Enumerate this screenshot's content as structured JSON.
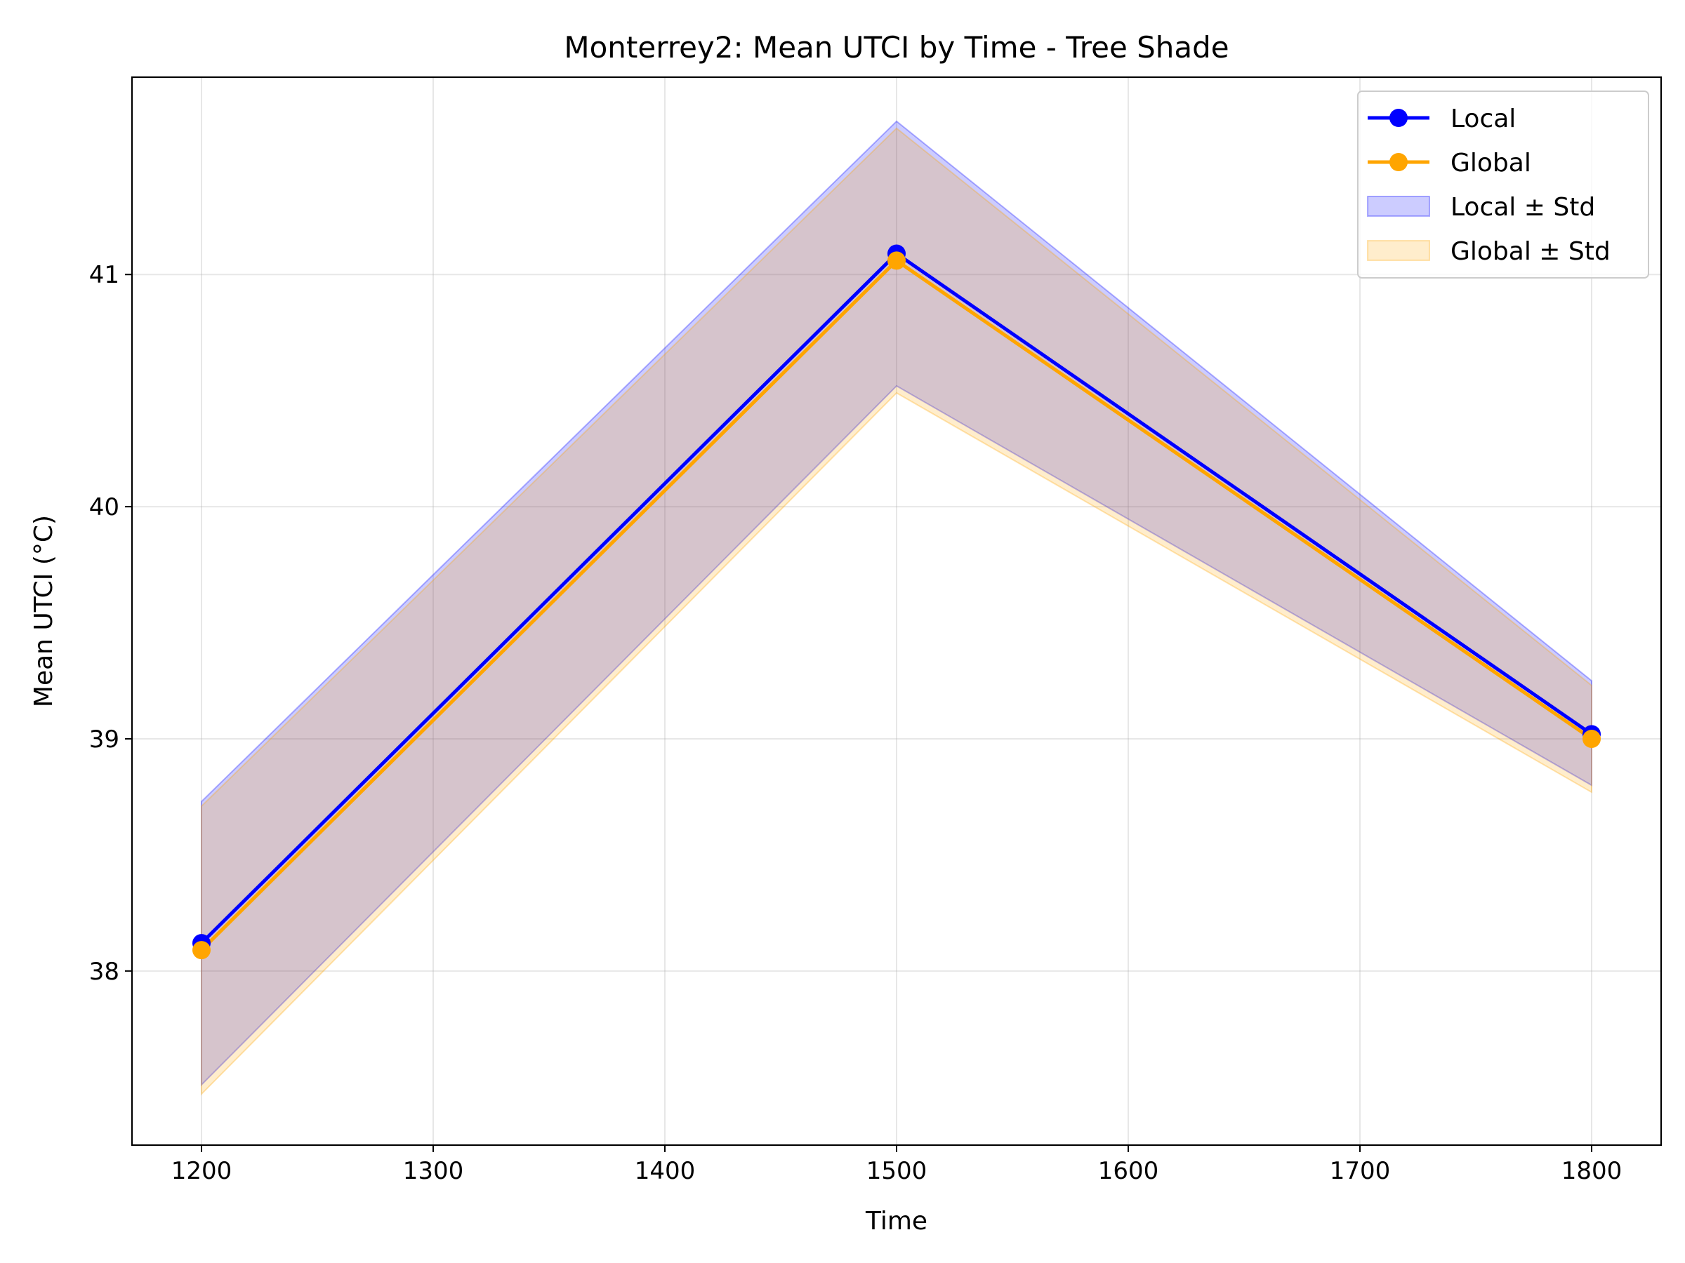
{
  "chart_data": {
    "type": "line",
    "title": "Monterrey2: Mean UTCI by Time - Tree Shade",
    "xlabel": "Time",
    "ylabel": "Mean UTCI (°C)",
    "x": [
      1200,
      1500,
      1800
    ],
    "xlim": [
      1170,
      1830
    ],
    "ylim": [
      37.25,
      41.85
    ],
    "xticks": [
      1200,
      1300,
      1400,
      1500,
      1600,
      1700,
      1800
    ],
    "yticks": [
      38,
      39,
      40,
      41
    ],
    "grid": true,
    "legend_position": "top-right",
    "series": [
      {
        "name": "Local",
        "color": "#0000ff",
        "values": [
          38.12,
          41.09,
          39.02
        ],
        "band_lower": [
          37.51,
          40.52,
          38.8
        ],
        "band_upper": [
          38.73,
          41.66,
          39.25
        ],
        "band_label": "Local ± Std",
        "band_fill": "#0000ff",
        "band_opacity": 0.2
      },
      {
        "name": "Global",
        "color": "#ffa500",
        "values": [
          38.09,
          41.06,
          39.0
        ],
        "band_lower": [
          37.47,
          40.49,
          38.77
        ],
        "band_upper": [
          38.71,
          41.63,
          39.23
        ],
        "band_label": "Global ± Std",
        "band_fill": "#ffa500",
        "band_opacity": 0.2
      }
    ]
  }
}
